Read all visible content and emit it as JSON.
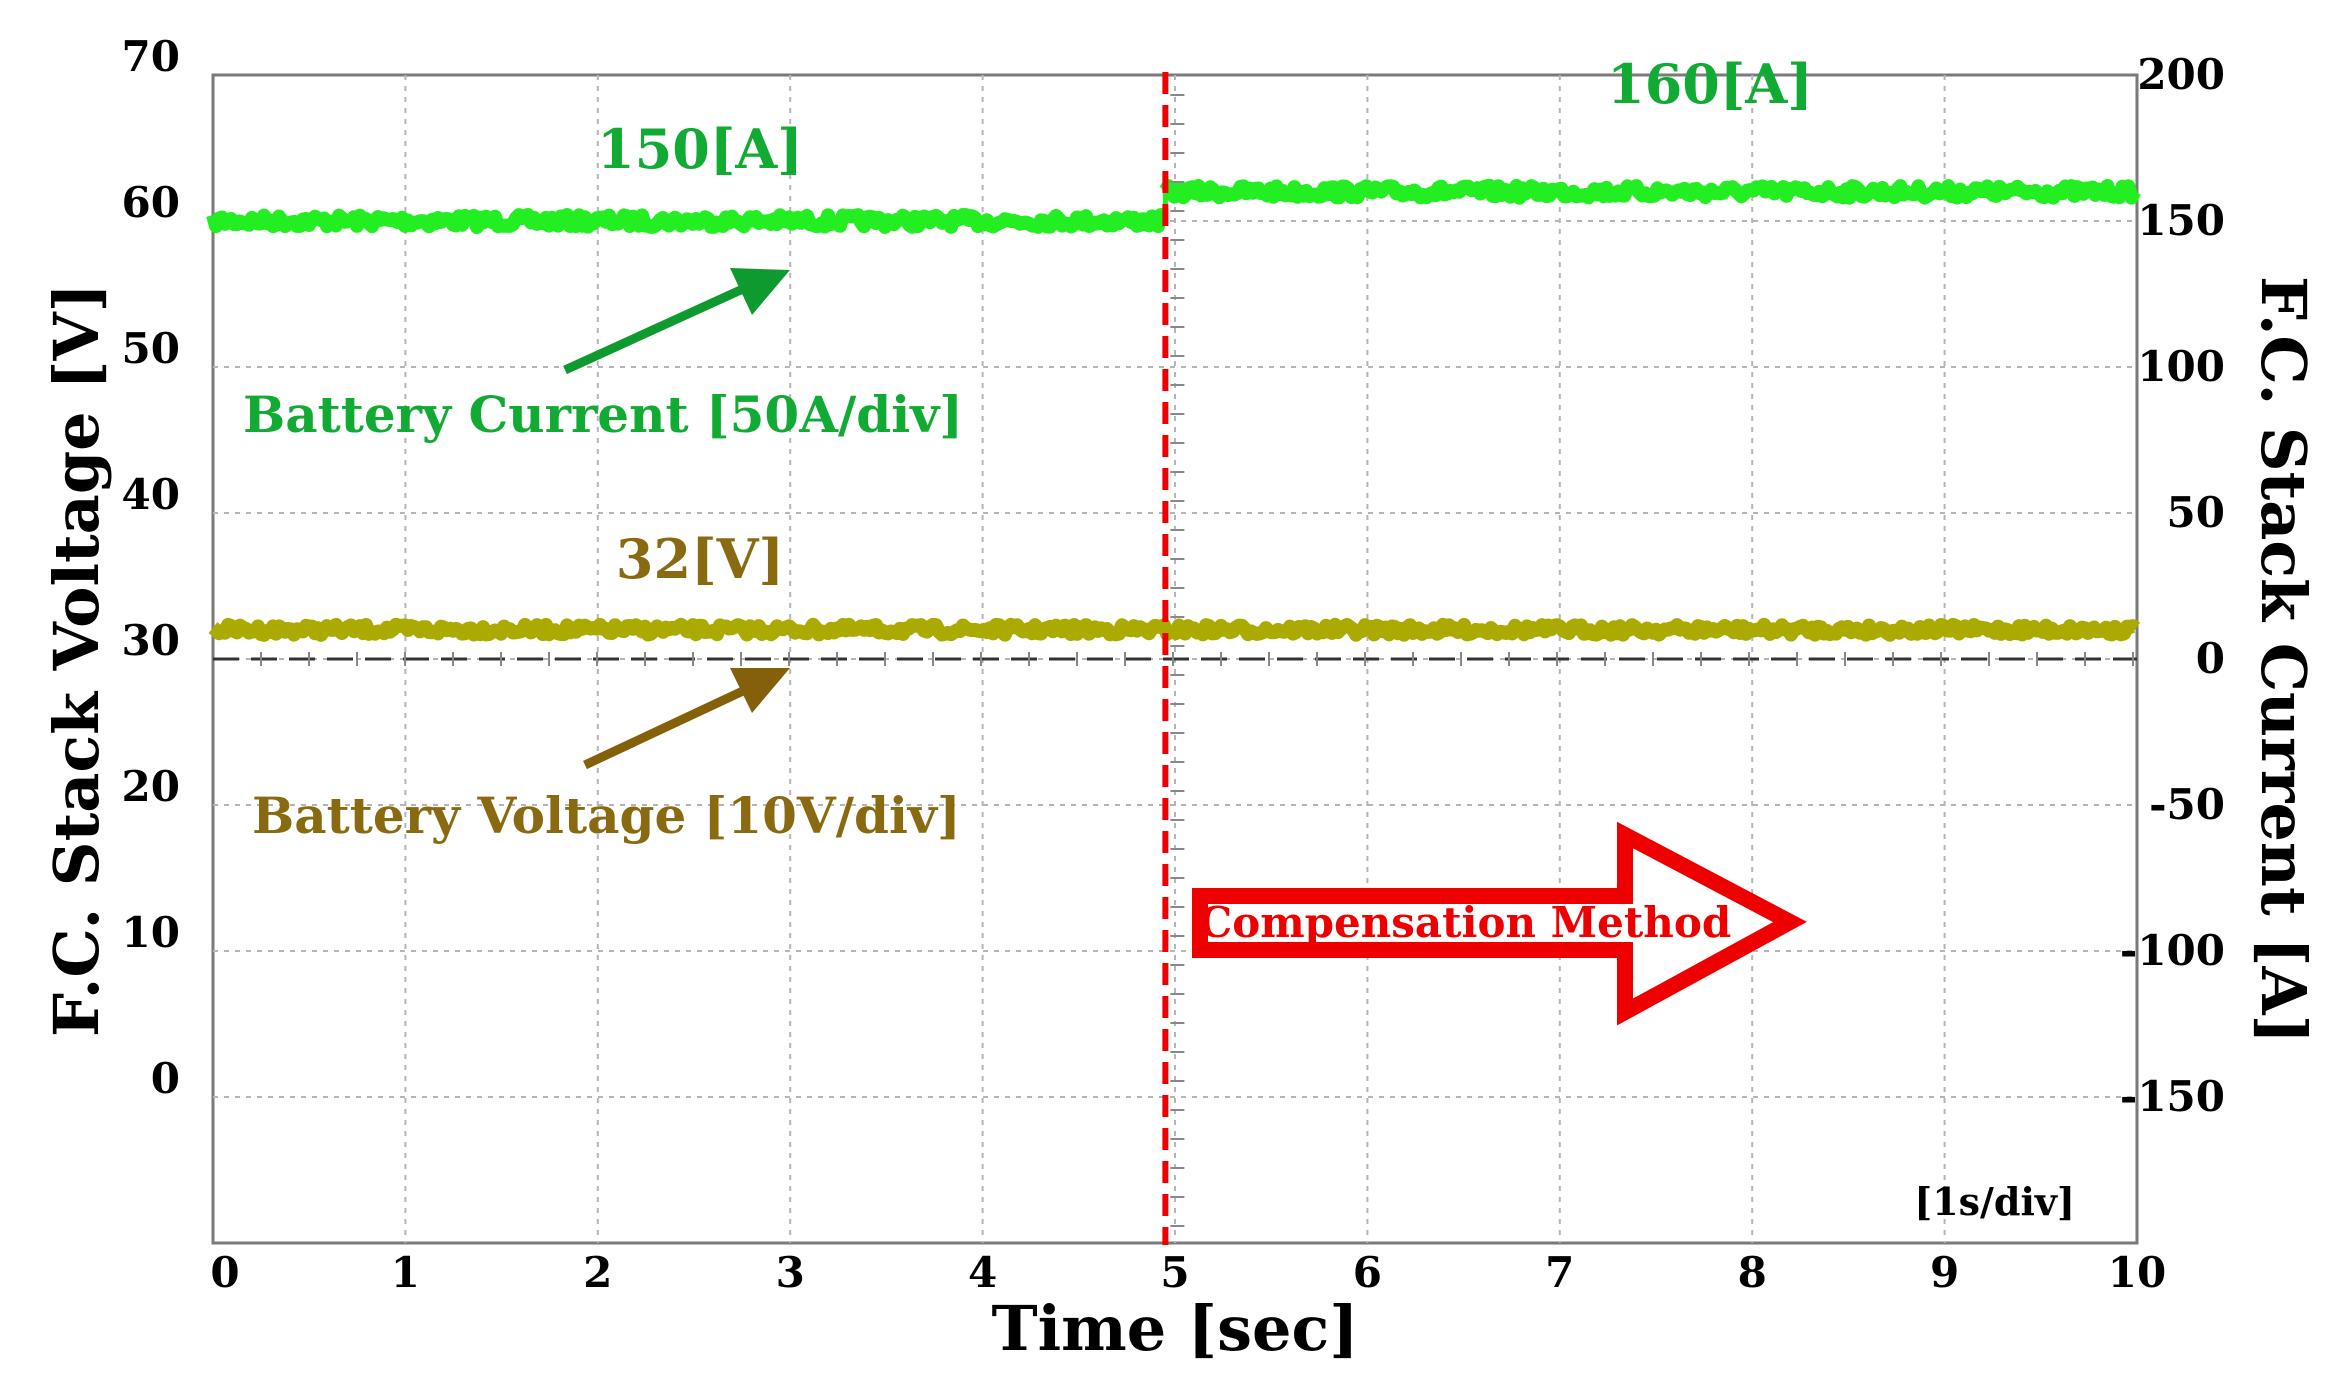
{
  "chart_data": {
    "type": "line",
    "x_axis": {
      "label": "Time  [sec]",
      "range": [
        0,
        10
      ],
      "ticks": [
        "0",
        "1",
        "2",
        "3",
        "4",
        "5",
        "6",
        "7",
        "8",
        "9",
        "10"
      ],
      "division_note": "[1s/div]"
    },
    "y_left": {
      "label": "F.C. Stack Voltage  [V]",
      "range": [
        -10,
        70
      ],
      "ticks": [
        "70",
        "60",
        "50",
        "40",
        "30",
        "20",
        "10",
        "0"
      ],
      "tick_values": [
        70,
        60,
        50,
        40,
        30,
        20,
        10,
        0
      ]
    },
    "y_right": {
      "label": "F.C. Stack Current  [A]",
      "range": [
        -200,
        200
      ],
      "ticks": [
        "200",
        "150",
        "100",
        "50",
        "0",
        "-50",
        "-100",
        "-150"
      ],
      "tick_values": [
        200,
        150,
        100,
        50,
        0,
        -50,
        -100,
        -150
      ]
    },
    "series": [
      {
        "name": "Battery Current [50A/div]",
        "axis": "right",
        "color": "#22ee22",
        "segments": [
          {
            "x_start": 0,
            "x_end": 4.95,
            "value": 150
          },
          {
            "x_start": 4.95,
            "x_end": 10,
            "value": 160
          }
        ]
      },
      {
        "name": "Battery Voltage [10V/div]",
        "axis": "left",
        "color": "#aaaa00",
        "segments": [
          {
            "x_start": 0,
            "x_end": 10,
            "value": 32
          }
        ]
      }
    ],
    "annotations": {
      "current_before": "150[A]",
      "current_after": "160[A]",
      "voltage_value": "32[V]",
      "current_series_label": "Battery Current [50A/div]",
      "voltage_series_label": "Battery Voltage [10V/div]",
      "method_label": "Compensation Method",
      "event_time": 4.95
    },
    "colors": {
      "current": "#22ee22",
      "current_label": "#11aa33",
      "voltage": "#aaaa00",
      "voltage_label": "#8a6a10",
      "event": "#ee0000"
    }
  }
}
